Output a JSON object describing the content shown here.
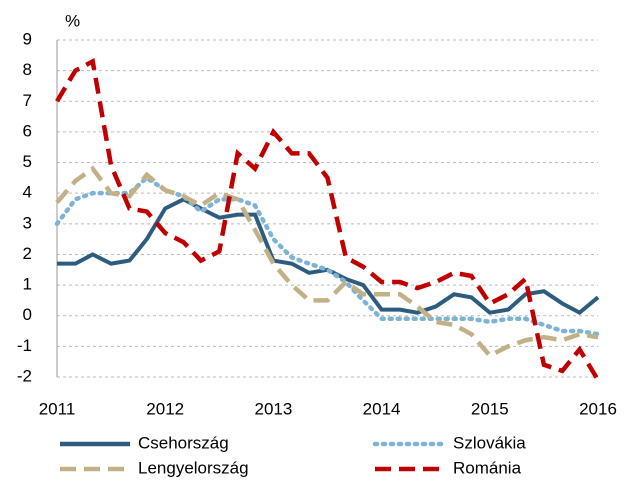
{
  "chart_data": {
    "type": "line",
    "y_label": "%",
    "x": [
      2011,
      2011.17,
      2011.33,
      2011.5,
      2011.67,
      2011.83,
      2012,
      2012.17,
      2012.33,
      2012.5,
      2012.67,
      2012.83,
      2013,
      2013.17,
      2013.33,
      2013.5,
      2013.67,
      2013.83,
      2014,
      2014.17,
      2014.33,
      2014.5,
      2014.67,
      2014.83,
      2015,
      2015.17,
      2015.33,
      2015.5,
      2015.67,
      2015.83,
      2016
    ],
    "series": [
      {
        "name": "Csehország",
        "color": "#2e5c7e",
        "style": "solid",
        "values": [
          1.7,
          1.7,
          2.0,
          1.7,
          1.8,
          2.5,
          3.5,
          3.8,
          3.5,
          3.2,
          3.3,
          3.3,
          1.8,
          1.7,
          1.4,
          1.5,
          1.2,
          1.0,
          0.2,
          0.2,
          0.1,
          0.3,
          0.7,
          0.6,
          0.1,
          0.2,
          0.7,
          0.8,
          0.4,
          0.1,
          0.6
        ]
      },
      {
        "name": "Szlovákia",
        "color": "#7fb3d5",
        "style": "dotted",
        "values": [
          3.0,
          3.8,
          4.0,
          4.0,
          4.0,
          4.5,
          4.1,
          3.9,
          3.4,
          3.8,
          3.8,
          3.6,
          2.5,
          1.9,
          1.7,
          1.5,
          1.1,
          0.5,
          -0.1,
          -0.1,
          -0.1,
          -0.1,
          -0.1,
          -0.1,
          -0.2,
          -0.1,
          -0.1,
          -0.3,
          -0.5,
          -0.5,
          -0.6
        ]
      },
      {
        "name": "Lengyelország",
        "color": "#c2b186",
        "style": "dashed",
        "values": [
          3.7,
          4.4,
          4.8,
          4.0,
          3.9,
          4.6,
          4.1,
          3.9,
          3.6,
          4.0,
          3.8,
          2.8,
          1.7,
          1.0,
          0.5,
          0.5,
          1.1,
          0.7,
          0.7,
          0.7,
          0.3,
          -0.2,
          -0.3,
          -0.6,
          -1.3,
          -1.0,
          -0.8,
          -0.7,
          -0.8,
          -0.6,
          -0.7
        ]
      },
      {
        "name": "Románia",
        "color": "#c00000",
        "style": "dashed",
        "values": [
          7.0,
          8.0,
          8.3,
          4.9,
          3.5,
          3.4,
          2.7,
          2.4,
          1.8,
          2.1,
          5.3,
          4.8,
          6.0,
          5.3,
          5.3,
          4.5,
          1.9,
          1.6,
          1.1,
          1.1,
          0.9,
          1.1,
          1.4,
          1.3,
          0.4,
          0.7,
          1.2,
          -1.6,
          -1.8,
          -1.1,
          -2.1
        ]
      }
    ],
    "xlim": [
      2011,
      2016
    ],
    "xticks": [
      2011,
      2012,
      2013,
      2014,
      2015,
      2016
    ],
    "ylim": [
      -2,
      9
    ],
    "yticks": [
      -2,
      -1,
      0,
      1,
      2,
      3,
      4,
      5,
      6,
      7,
      8,
      9
    ],
    "grid": true,
    "legend": "bottom"
  }
}
